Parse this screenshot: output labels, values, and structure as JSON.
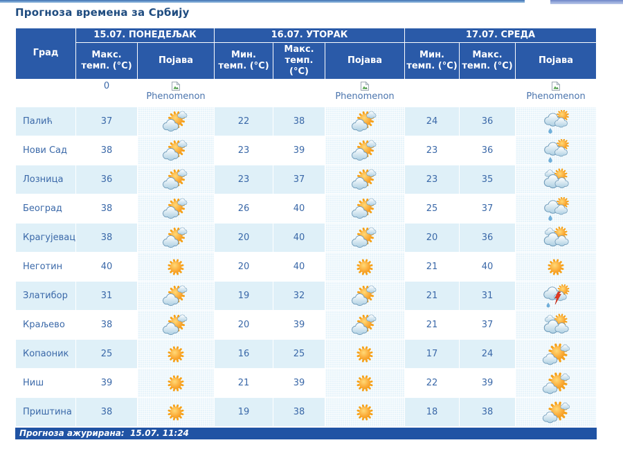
{
  "title": "Прогноза времена за Србију",
  "header": {
    "city": "Град",
    "days": [
      {
        "label": "15.07. ПОНЕДЕЉАК"
      },
      {
        "label": "16.07. УТОРАК"
      },
      {
        "label": "17.07. СРЕДА"
      }
    ],
    "sub": [
      "Макс. темп. (°C)",
      "Појава",
      "Мин. темп. (°C)",
      "Макс. темп. (°C)",
      "Појава",
      "Мин. темп. (°C)",
      "Макс. темп. (°C)",
      "Појава"
    ]
  },
  "phenomenon_row": {
    "value": "0",
    "label": "Phenomenon"
  },
  "rows": [
    {
      "city": "Палић",
      "day1": {
        "max": "37",
        "icon": "partly-cloudy"
      },
      "day2": {
        "min": "22",
        "max": "38",
        "icon": "partly-cloudy"
      },
      "day3": {
        "min": "24",
        "max": "36",
        "icon": "rain-shower"
      }
    },
    {
      "city": "Нови Сад",
      "day1": {
        "max": "38",
        "icon": "partly-cloudy"
      },
      "day2": {
        "min": "23",
        "max": "39",
        "icon": "partly-cloudy"
      },
      "day3": {
        "min": "23",
        "max": "36",
        "icon": "rain-shower"
      }
    },
    {
      "city": "Лозница",
      "day1": {
        "max": "36",
        "icon": "partly-cloudy"
      },
      "day2": {
        "min": "23",
        "max": "37",
        "icon": "partly-cloudy"
      },
      "day3": {
        "min": "23",
        "max": "35",
        "icon": "mostly-cloudy"
      }
    },
    {
      "city": "Београд",
      "day1": {
        "max": "38",
        "icon": "partly-cloudy"
      },
      "day2": {
        "min": "26",
        "max": "40",
        "icon": "partly-cloudy"
      },
      "day3": {
        "min": "25",
        "max": "37",
        "icon": "rain-shower"
      }
    },
    {
      "city": "Крагујевац",
      "day1": {
        "max": "38",
        "icon": "partly-cloudy"
      },
      "day2": {
        "min": "20",
        "max": "40",
        "icon": "partly-cloudy"
      },
      "day3": {
        "min": "20",
        "max": "36",
        "icon": "mostly-cloudy"
      }
    },
    {
      "city": "Неготин",
      "day1": {
        "max": "40",
        "icon": "sunny"
      },
      "day2": {
        "min": "20",
        "max": "40",
        "icon": "sunny"
      },
      "day3": {
        "min": "21",
        "max": "40",
        "icon": "sunny"
      }
    },
    {
      "city": "Златибор",
      "day1": {
        "max": "31",
        "icon": "partly-cloudy"
      },
      "day2": {
        "min": "19",
        "max": "32",
        "icon": "partly-cloudy"
      },
      "day3": {
        "min": "21",
        "max": "31",
        "icon": "thunderstorm"
      }
    },
    {
      "city": "Краљево",
      "day1": {
        "max": "38",
        "icon": "partly-cloudy"
      },
      "day2": {
        "min": "20",
        "max": "39",
        "icon": "partly-cloudy"
      },
      "day3": {
        "min": "21",
        "max": "37",
        "icon": "mostly-cloudy"
      }
    },
    {
      "city": "Копаоник",
      "day1": {
        "max": "25",
        "icon": "sunny"
      },
      "day2": {
        "min": "16",
        "max": "25",
        "icon": "sunny"
      },
      "day3": {
        "min": "17",
        "max": "24",
        "icon": "partly-sunny"
      }
    },
    {
      "city": "Ниш",
      "day1": {
        "max": "39",
        "icon": "sunny"
      },
      "day2": {
        "min": "21",
        "max": "39",
        "icon": "sunny"
      },
      "day3": {
        "min": "22",
        "max": "39",
        "icon": "partly-sunny"
      }
    },
    {
      "city": "Приштина",
      "day1": {
        "max": "38",
        "icon": "sunny"
      },
      "day2": {
        "min": "19",
        "max": "38",
        "icon": "sunny"
      },
      "day3": {
        "min": "18",
        "max": "38",
        "icon": "partly-sunny"
      }
    }
  ],
  "icons": {
    "sunny": "sun only",
    "partly-cloudy": "sun with small and large clouds",
    "partly-sunny": "large sun with clouds at left",
    "mostly-cloudy": "sun peeking behind clouds",
    "rain-shower": "sun behind cloud with rain drop",
    "thunderstorm": "cloud with sun, red lightning bolt and drop",
    "broken-image": "missing image placeholder"
  },
  "footer": {
    "updated_text": "Прогноза ажурирана:  15.07. 11:24"
  },
  "colors": {
    "header_bg": "#2a5aa8",
    "footer_bg": "#2053a4",
    "row_alt_bg": "#dff0f8",
    "text_blue": "#3a68a8",
    "title_color": "#1f4c80",
    "sun_orange": "#f6a118"
  }
}
